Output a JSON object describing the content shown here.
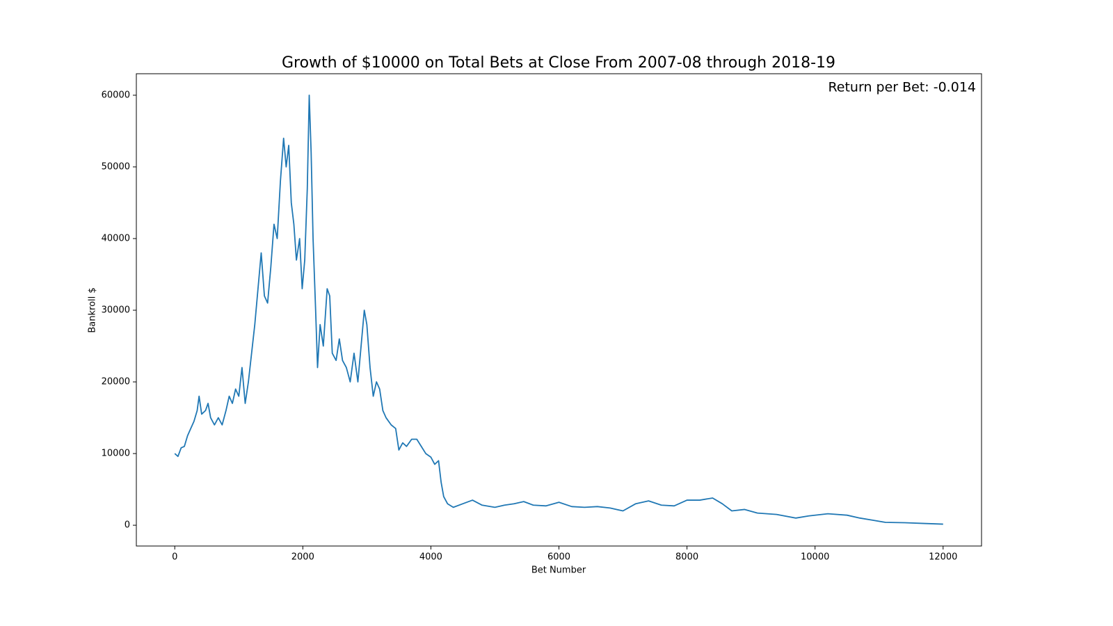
{
  "chart_data": {
    "type": "line",
    "title": "Growth of $10000 on Total Bets at Close From 2007-08 through 2018-19",
    "annotation": "Return per Bet: -0.014",
    "x_label": "Bet Number",
    "y_label": "Bankroll $",
    "xlim": [
      -600,
      12600
    ],
    "ylim": [
      -2900,
      63000
    ],
    "xticks": [
      0,
      2000,
      4000,
      6000,
      8000,
      10000,
      12000
    ],
    "yticks": [
      0,
      10000,
      20000,
      30000,
      40000,
      50000,
      60000
    ],
    "grid": false,
    "x": [
      0,
      50,
      100,
      150,
      200,
      250,
      300,
      350,
      380,
      420,
      480,
      520,
      560,
      620,
      680,
      740,
      800,
      850,
      900,
      950,
      1000,
      1050,
      1100,
      1150,
      1200,
      1250,
      1300,
      1350,
      1400,
      1450,
      1500,
      1550,
      1600,
      1650,
      1700,
      1740,
      1780,
      1820,
      1860,
      1900,
      1950,
      1990,
      2030,
      2070,
      2100,
      2130,
      2160,
      2200,
      2230,
      2270,
      2320,
      2380,
      2420,
      2460,
      2520,
      2570,
      2620,
      2680,
      2740,
      2800,
      2860,
      2920,
      2960,
      3000,
      3050,
      3100,
      3150,
      3200,
      3250,
      3300,
      3380,
      3450,
      3500,
      3560,
      3620,
      3700,
      3780,
      3850,
      3920,
      4000,
      4060,
      4120,
      4160,
      4200,
      4260,
      4350,
      4500,
      4650,
      4800,
      5000,
      5150,
      5300,
      5450,
      5600,
      5800,
      6000,
      6200,
      6400,
      6600,
      6800,
      7000,
      7200,
      7400,
      7600,
      7800,
      8000,
      8200,
      8400,
      8550,
      8700,
      8900,
      9100,
      9400,
      9700,
      9900,
      10200,
      10500,
      10700,
      10900,
      11100,
      11400,
      11700,
      12000
    ],
    "series": [
      {
        "color": "#1f77b4",
        "values": [
          10000,
          9600,
          10800,
          11000,
          12500,
          13500,
          14500,
          16000,
          18000,
          15500,
          16000,
          17000,
          15000,
          14000,
          15000,
          14000,
          16000,
          18000,
          17000,
          19000,
          18000,
          22000,
          17000,
          20000,
          24000,
          28000,
          33000,
          38000,
          32000,
          31000,
          36000,
          42000,
          40000,
          48000,
          54000,
          50000,
          53000,
          45000,
          42000,
          37000,
          40000,
          33000,
          37000,
          47000,
          60000,
          52000,
          40000,
          30000,
          22000,
          28000,
          25000,
          33000,
          32000,
          24000,
          23000,
          26000,
          23000,
          22000,
          20000,
          24000,
          20000,
          26000,
          30000,
          28000,
          22000,
          18000,
          20000,
          19000,
          16000,
          15000,
          14000,
          13500,
          10500,
          11500,
          11000,
          12000,
          12000,
          11000,
          10000,
          9500,
          8500,
          9000,
          6000,
          4000,
          3000,
          2500,
          3000,
          3500,
          2800,
          2500,
          2800,
          3000,
          3300,
          2800,
          2700,
          3200,
          2600,
          2500,
          2600,
          2400,
          2000,
          3000,
          3400,
          2800,
          2700,
          3500,
          3500,
          3800,
          3000,
          2000,
          2200,
          1700,
          1500,
          1000,
          1300,
          1600,
          1400,
          1000,
          700,
          400,
          350,
          250,
          150
        ]
      }
    ]
  }
}
